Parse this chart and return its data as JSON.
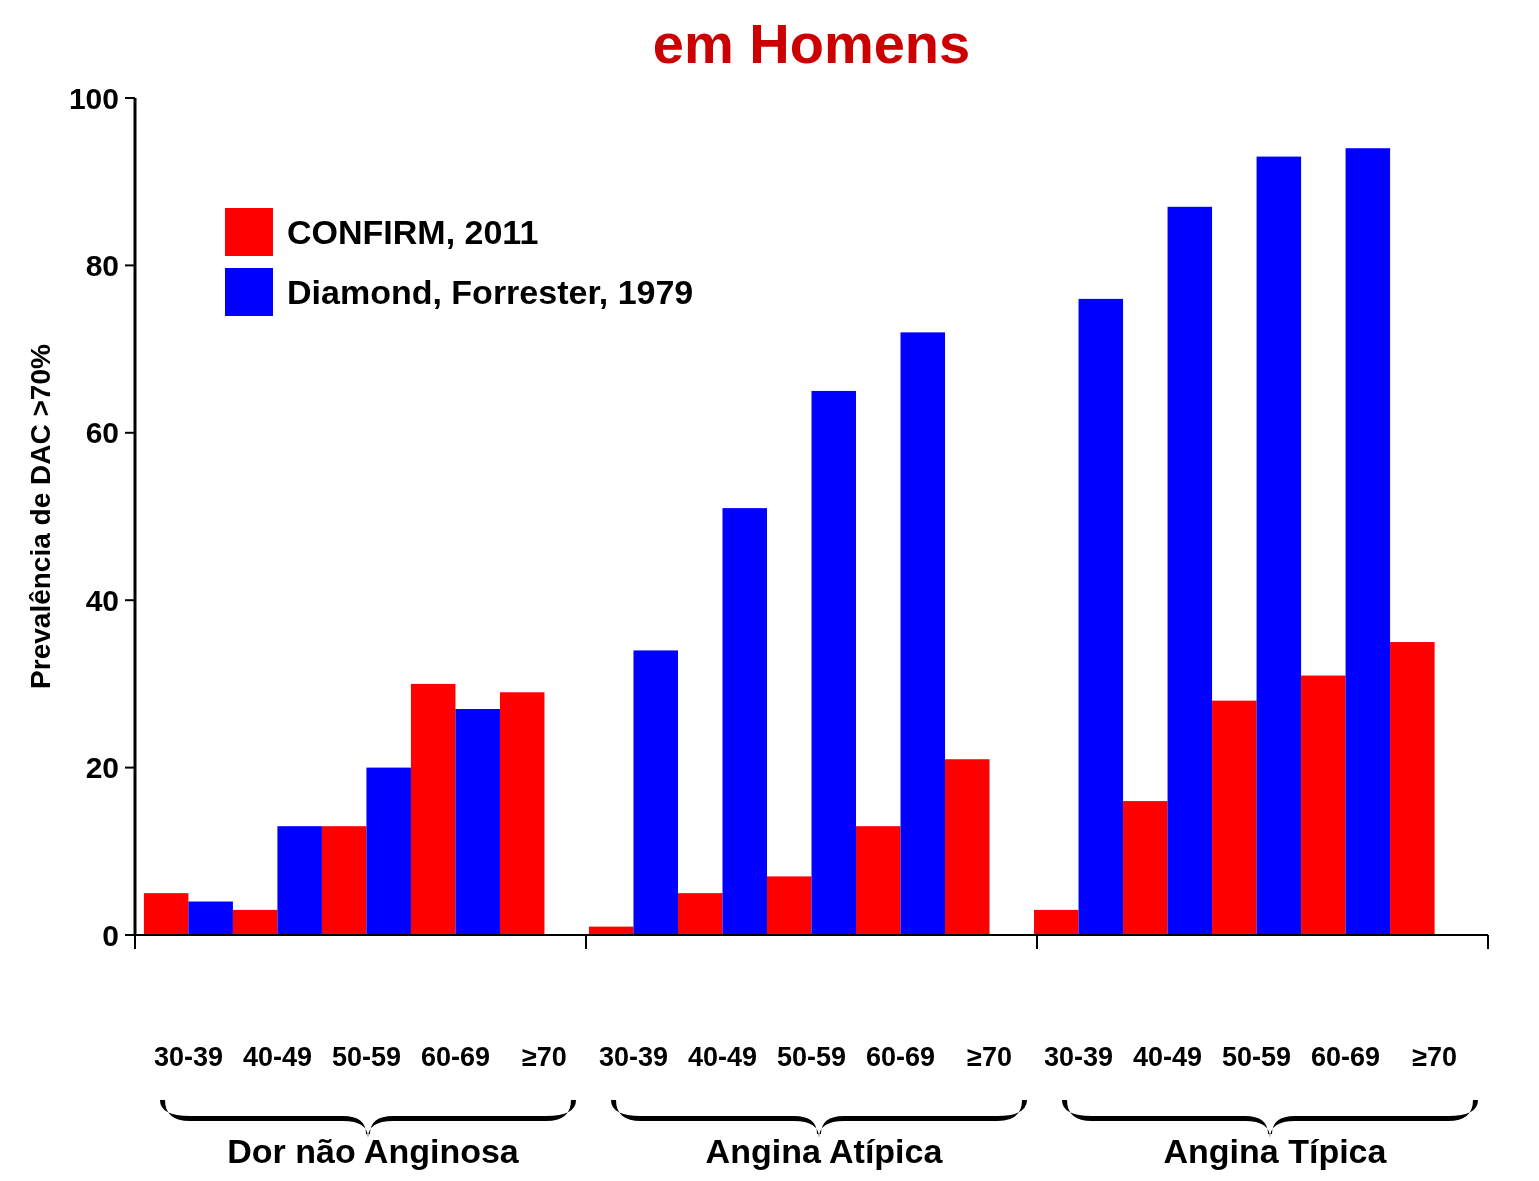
{
  "chart_data": {
    "type": "bar",
    "title": "em Homens",
    "ylabel": "Prevalência de DAC >70%",
    "categories": [
      "30-39",
      "40-49",
      "50-59",
      "60-69",
      "≥70",
      "30-39",
      "40-49",
      "50-59",
      "60-69",
      "≥70",
      "30-39",
      "40-49",
      "50-59",
      "60-69",
      "≥70"
    ],
    "series": [
      {
        "name": "CONFIRM, 2011",
        "color": "#ff0000",
        "values": [
          5,
          3,
          13,
          30,
          29,
          1,
          5,
          7,
          13,
          21,
          3,
          16,
          28,
          31,
          35
        ]
      },
      {
        "name": "Diamond, Forrester, 1979",
        "color": "#0000ff",
        "values": [
          4,
          13,
          20,
          27,
          null,
          34,
          51,
          65,
          72,
          null,
          76,
          87,
          93,
          94,
          null
        ]
      }
    ],
    "ylim": [
      0,
      100
    ],
    "yticks": [
      0,
      20,
      40,
      60,
      80,
      100
    ],
    "grid": false,
    "legend": "top left",
    "annotations": [
      "Dor não Anginosa",
      "Angina Atípica",
      "Angina Típica"
    ]
  }
}
